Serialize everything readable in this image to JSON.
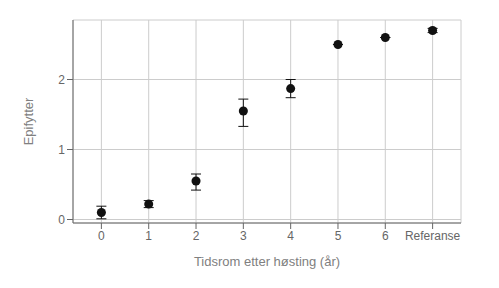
{
  "chart_data": {
    "type": "scatter",
    "x": [
      0,
      1,
      2,
      3,
      4,
      5,
      6,
      7
    ],
    "values": [
      0.1,
      0.22,
      0.55,
      1.55,
      1.87,
      2.5,
      2.6,
      2.7
    ],
    "error_lower": [
      0.09,
      0.05,
      0.13,
      0.22,
      0.13,
      0.0,
      0.0,
      0.03
    ],
    "error_upper": [
      0.09,
      0.05,
      0.1,
      0.17,
      0.13,
      0.0,
      0.0,
      0.03
    ],
    "xlabel": "Tidsrom etter høsting (år)",
    "ylabel": "Epifytter",
    "xlim": [
      -0.6,
      7.6
    ],
    "xticks": [
      0,
      1,
      2,
      3,
      4,
      5,
      6,
      {
        "value": 7,
        "label": "Referanse"
      }
    ],
    "ylim": [
      -0.05,
      2.85
    ],
    "yticks": [
      0,
      1,
      2
    ],
    "grid": true,
    "color": "#111111"
  }
}
